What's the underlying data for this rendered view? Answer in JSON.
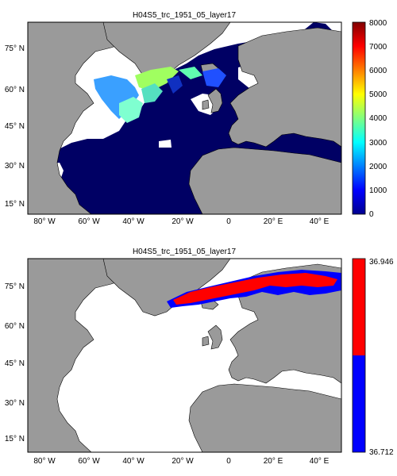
{
  "chart_data": [
    {
      "type": "heatmap",
      "title": "H04S5_trc_1951_05_layer17",
      "x_ticks": [
        "80° W",
        "60° W",
        "40° W",
        "20° W",
        "0",
        "20° E",
        "40° E"
      ],
      "y_ticks": [
        "75° N",
        "60° N",
        "45° N",
        "30° N",
        "15° N"
      ],
      "colorbar": {
        "ticks": [
          "0",
          "1000",
          "2000",
          "3000",
          "4000",
          "5000",
          "6000",
          "7000",
          "8000"
        ],
        "range": [
          0,
          8000
        ],
        "colormap": "jet"
      },
      "xlim": [
        -90,
        50
      ],
      "ylim": [
        10,
        87
      ],
      "colors": {
        "land": "#9a9a9a",
        "ocean_background": "#000064",
        "missing": "#ffffff"
      }
    },
    {
      "type": "heatmap",
      "title": "H04S5_trc_1951_05_layer17",
      "x_ticks": [
        "80° W",
        "60° W",
        "40° W",
        "20° W",
        "0",
        "20° E",
        "40° E"
      ],
      "y_ticks": [
        "75° N",
        "60° N",
        "45° N",
        "30° N",
        "15° N"
      ],
      "colorbar": {
        "ticks": [
          "36.946",
          "36.712"
        ],
        "range": [
          36.712,
          36.946
        ],
        "colors": [
          "#0000ff",
          "#ff0000"
        ]
      },
      "xlim": [
        -90,
        50
      ],
      "ylim": [
        10,
        87
      ],
      "colors": {
        "land": "#9a9a9a",
        "missing": "#ffffff"
      }
    }
  ]
}
